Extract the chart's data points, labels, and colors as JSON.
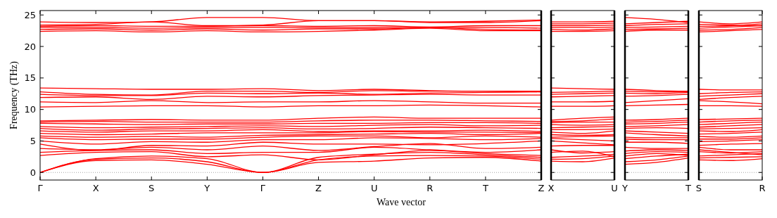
{
  "chart_data": [
    {
      "type": "line",
      "xlabel": "Wave vector",
      "ylabel": "Frequency (THz)",
      "categories": [
        "Γ",
        "X",
        "S",
        "Y",
        "Γ",
        "Z",
        "U",
        "R",
        "T",
        "Z"
      ],
      "ylim": [
        -1.2,
        25.7
      ],
      "yticks": [
        0,
        5,
        10,
        15,
        20,
        25
      ],
      "grid": false,
      "marker": "none",
      "line_style": "solid",
      "ref_lines": [
        {
          "axis": "y",
          "value": 0,
          "color": "#8c8c8c",
          "line_style": "dotted"
        }
      ],
      "series": [
        {
          "color": "#ff0000",
          "values": [
            0,
            1.9,
            2.0,
            1.3,
            0,
            1.6,
            1.8,
            2.3,
            2.4,
            1.8
          ]
        },
        {
          "color": "#ff0000",
          "values": [
            0,
            2.1,
            2.3,
            1.7,
            0,
            2.0,
            2.6,
            2.7,
            2.6,
            2.1
          ]
        },
        {
          "color": "#ff0000",
          "values": [
            0,
            2.2,
            2.6,
            2.2,
            0,
            2.4,
            2.9,
            3.2,
            2.8,
            2.4
          ]
        },
        {
          "color": "#ff0000",
          "values": [
            2.7,
            3.2,
            3.3,
            2.5,
            2.8,
            2.0,
            2.8,
            3.5,
            3.0,
            2.7
          ]
        },
        {
          "color": "#ff0000",
          "values": [
            3.2,
            3.5,
            3.6,
            3.0,
            3.2,
            3.2,
            4.0,
            3.6,
            3.2,
            3.6
          ]
        },
        {
          "color": "#ff0000",
          "values": [
            3.8,
            3.6,
            4.0,
            3.6,
            4.2,
            3.5,
            4.1,
            4.6,
            3.8,
            4.0
          ]
        },
        {
          "color": "#ff0000",
          "values": [
            4.5,
            3.5,
            4.3,
            4.2,
            4.8,
            4.5,
            4.5,
            4.4,
            4.6,
            5.0
          ]
        },
        {
          "color": "#ff0000",
          "values": [
            5.0,
            4.5,
            4.9,
            4.8,
            5.2,
            5.2,
            5.5,
            5.4,
            5.2,
            5.4
          ]
        },
        {
          "color": "#ff0000",
          "values": [
            5.5,
            5.2,
            5.3,
            5.3,
            5.6,
            5.8,
            5.8,
            5.5,
            5.8,
            5.6
          ]
        },
        {
          "color": "#ff0000",
          "values": [
            5.8,
            5.6,
            5.7,
            5.6,
            5.9,
            6.0,
            6.1,
            6.2,
            6.0,
            6.2
          ]
        },
        {
          "color": "#ff0000",
          "values": [
            6.2,
            6.0,
            6.1,
            6.3,
            6.3,
            6.3,
            6.5,
            6.4,
            6.4,
            6.3
          ]
        },
        {
          "color": "#ff0000",
          "values": [
            6.6,
            6.4,
            6.6,
            6.6,
            6.8,
            6.5,
            6.6,
            6.6,
            6.7,
            6.5
          ]
        },
        {
          "color": "#ff0000",
          "values": [
            7.0,
            6.7,
            6.9,
            7.0,
            7.1,
            6.9,
            7.0,
            7.2,
            7.1,
            7.0
          ]
        },
        {
          "color": "#ff0000",
          "values": [
            7.3,
            7.1,
            7.2,
            7.3,
            7.4,
            7.3,
            7.5,
            7.6,
            7.4,
            7.5
          ]
        },
        {
          "color": "#ff0000",
          "values": [
            7.8,
            7.7,
            7.6,
            7.7,
            7.7,
            7.8,
            7.8,
            7.9,
            7.9,
            7.8
          ]
        },
        {
          "color": "#ff0000",
          "values": [
            8.0,
            8.1,
            8.0,
            8.0,
            8.0,
            8.2,
            8.3,
            8.3,
            8.2,
            8.1
          ]
        },
        {
          "color": "#ff0000",
          "values": [
            8.2,
            8.3,
            8.4,
            8.3,
            8.3,
            8.6,
            8.8,
            8.6,
            8.6,
            8.6
          ]
        },
        {
          "color": "#ff0000",
          "values": [
            10.4,
            10.5,
            10.6,
            10.6,
            10.4,
            10.6,
            10.6,
            10.7,
            10.6,
            10.4
          ]
        },
        {
          "color": "#ff0000",
          "values": [
            11.2,
            11.1,
            11.4,
            11.1,
            11.2,
            11.2,
            11.4,
            11.2,
            11.0,
            11.0
          ]
        },
        {
          "color": "#ff0000",
          "values": [
            11.9,
            12.0,
            11.6,
            12.1,
            12.0,
            12.2,
            12.3,
            12.4,
            12.3,
            12.3
          ]
        },
        {
          "color": "#ff0000",
          "values": [
            12.4,
            12.2,
            12.2,
            12.6,
            12.5,
            12.6,
            12.4,
            12.6,
            12.7,
            12.8
          ]
        },
        {
          "color": "#ff0000",
          "values": [
            12.8,
            12.4,
            12.3,
            12.9,
            12.9,
            12.7,
            13.0,
            12.9,
            12.9,
            12.8
          ]
        },
        {
          "color": "#ff0000",
          "values": [
            13.4,
            13.3,
            13.2,
            13.2,
            13.3,
            13.0,
            13.2,
            13.0,
            12.9,
            12.9
          ]
        },
        {
          "color": "#ff0000",
          "values": [
            22.4,
            22.5,
            22.3,
            22.5,
            22.3,
            22.4,
            22.6,
            22.9,
            22.5,
            22.5
          ]
        },
        {
          "color": "#ff0000",
          "values": [
            22.7,
            22.8,
            22.6,
            22.8,
            22.6,
            22.8,
            22.8,
            23.0,
            22.7,
            22.6
          ]
        },
        {
          "color": "#ff0000",
          "values": [
            23.0,
            23.0,
            22.9,
            23.0,
            23.0,
            23.0,
            23.0,
            23.0,
            23.0,
            22.9
          ]
        },
        {
          "color": "#ff0000",
          "values": [
            23.2,
            23.3,
            23.2,
            23.2,
            23.3,
            23.2,
            23.3,
            23.1,
            23.3,
            23.3
          ]
        },
        {
          "color": "#ff0000",
          "values": [
            23.4,
            23.5,
            23.9,
            23.3,
            23.4,
            24.1,
            24.1,
            23.8,
            23.8,
            24.1
          ]
        },
        {
          "color": "#ff0000",
          "values": [
            23.9,
            23.8,
            23.9,
            24.6,
            24.6,
            24.1,
            24.1,
            23.9,
            24.0,
            24.2
          ]
        }
      ]
    },
    {
      "type": "line",
      "categories": [
        "X",
        null,
        "U"
      ],
      "ylim": [
        -1.2,
        25.7
      ],
      "yticks": [
        0,
        5,
        10,
        15,
        20,
        25
      ],
      "tick_labels": "x",
      "grid": false,
      "marker": "none",
      "line_style": "solid",
      "ref_lines": [
        {
          "axis": "y",
          "value": 0,
          "color": "#8c8c8c",
          "line_style": "dotted"
        }
      ],
      "series": [
        {
          "color": "#ff0000",
          "values": [
            1.8,
            1.7,
            2.3
          ]
        },
        {
          "color": "#ff0000",
          "values": [
            2.1,
            2.2,
            2.6
          ]
        },
        {
          "color": "#ff0000",
          "values": [
            2.4,
            2.6,
            2.9
          ]
        },
        {
          "color": "#ff0000",
          "values": [
            3.2,
            3.4,
            2.5
          ]
        },
        {
          "color": "#ff0000",
          "values": [
            3.6,
            3.1,
            3.3
          ]
        },
        {
          "color": "#ff0000",
          "values": [
            4.2,
            4.3,
            4.3
          ]
        },
        {
          "color": "#ff0000",
          "values": [
            5.0,
            4.7,
            4.4
          ]
        },
        {
          "color": "#ff0000",
          "values": [
            5.4,
            5.2,
            5.0
          ]
        },
        {
          "color": "#ff0000",
          "values": [
            5.6,
            5.7,
            5.8
          ]
        },
        {
          "color": "#ff0000",
          "values": [
            6.0,
            5.9,
            6.0
          ]
        },
        {
          "color": "#ff0000",
          "values": [
            6.4,
            6.2,
            6.6
          ]
        },
        {
          "color": "#ff0000",
          "values": [
            6.8,
            6.8,
            6.9
          ]
        },
        {
          "color": "#ff0000",
          "values": [
            7.1,
            7.2,
            7.3
          ]
        },
        {
          "color": "#ff0000",
          "values": [
            7.6,
            7.5,
            7.6
          ]
        },
        {
          "color": "#ff0000",
          "values": [
            7.9,
            8.0,
            8.0
          ]
        },
        {
          "color": "#ff0000",
          "values": [
            8.1,
            8.2,
            8.5
          ]
        },
        {
          "color": "#ff0000",
          "values": [
            8.3,
            8.6,
            8.8
          ]
        },
        {
          "color": "#ff0000",
          "values": [
            10.5,
            10.5,
            10.6
          ]
        },
        {
          "color": "#ff0000",
          "values": [
            11.2,
            11.2,
            11.3
          ]
        },
        {
          "color": "#ff0000",
          "values": [
            12.0,
            12.1,
            12.2
          ]
        },
        {
          "color": "#ff0000",
          "values": [
            12.4,
            12.5,
            12.6
          ]
        },
        {
          "color": "#ff0000",
          "values": [
            12.7,
            12.8,
            12.9
          ]
        },
        {
          "color": "#ff0000",
          "values": [
            13.4,
            13.3,
            13.2
          ]
        },
        {
          "color": "#ff0000",
          "values": [
            22.4,
            22.4,
            22.5
          ]
        },
        {
          "color": "#ff0000",
          "values": [
            22.7,
            22.6,
            22.8
          ]
        },
        {
          "color": "#ff0000",
          "values": [
            23.0,
            23.0,
            23.1
          ]
        },
        {
          "color": "#ff0000",
          "values": [
            23.3,
            23.3,
            23.4
          ]
        },
        {
          "color": "#ff0000",
          "values": [
            23.6,
            23.6,
            23.7
          ]
        },
        {
          "color": "#ff0000",
          "values": [
            23.9,
            23.9,
            24.0
          ]
        }
      ]
    },
    {
      "type": "line",
      "categories": [
        "Y",
        null,
        "T"
      ],
      "ylim": [
        -1.2,
        25.7
      ],
      "yticks": [
        0,
        5,
        10,
        15,
        20,
        25
      ],
      "tick_labels": "x",
      "grid": false,
      "marker": "none",
      "line_style": "solid",
      "ref_lines": [
        {
          "axis": "y",
          "value": 0,
          "color": "#8c8c8c",
          "line_style": "dotted"
        }
      ],
      "series": [
        {
          "color": "#ff0000",
          "values": [
            1.3,
            1.6,
            2.3
          ]
        },
        {
          "color": "#ff0000",
          "values": [
            1.7,
            2.0,
            2.6
          ]
        },
        {
          "color": "#ff0000",
          "values": [
            2.2,
            2.6,
            2.9
          ]
        },
        {
          "color": "#ff0000",
          "values": [
            2.6,
            3.0,
            2.7
          ]
        },
        {
          "color": "#ff0000",
          "values": [
            3.0,
            3.3,
            3.2
          ]
        },
        {
          "color": "#ff0000",
          "values": [
            3.4,
            3.6,
            3.5
          ]
        },
        {
          "color": "#ff0000",
          "values": [
            4.0,
            3.8,
            3.8
          ]
        },
        {
          "color": "#ff0000",
          "values": [
            4.8,
            4.8,
            4.6
          ]
        },
        {
          "color": "#ff0000",
          "values": [
            5.3,
            5.2,
            5.2
          ]
        },
        {
          "color": "#ff0000",
          "values": [
            5.6,
            5.5,
            5.5
          ]
        },
        {
          "color": "#ff0000",
          "values": [
            6.3,
            6.0,
            5.8
          ]
        },
        {
          "color": "#ff0000",
          "values": [
            6.6,
            6.4,
            6.2
          ]
        },
        {
          "color": "#ff0000",
          "values": [
            7.0,
            7.1,
            7.0
          ]
        },
        {
          "color": "#ff0000",
          "values": [
            7.3,
            7.4,
            7.6
          ]
        },
        {
          "color": "#ff0000",
          "values": [
            7.7,
            7.8,
            8.0
          ]
        },
        {
          "color": "#ff0000",
          "values": [
            8.0,
            8.1,
            8.3
          ]
        },
        {
          "color": "#ff0000",
          "values": [
            8.3,
            8.4,
            8.6
          ]
        },
        {
          "color": "#ff0000",
          "values": [
            10.6,
            10.7,
            10.8
          ]
        },
        {
          "color": "#ff0000",
          "values": [
            11.1,
            11.4,
            11.7
          ]
        },
        {
          "color": "#ff0000",
          "values": [
            12.1,
            12.2,
            12.4
          ]
        },
        {
          "color": "#ff0000",
          "values": [
            12.6,
            12.5,
            12.7
          ]
        },
        {
          "color": "#ff0000",
          "values": [
            12.9,
            12.8,
            12.8
          ]
        },
        {
          "color": "#ff0000",
          "values": [
            13.2,
            13.0,
            12.9
          ]
        },
        {
          "color": "#ff0000",
          "values": [
            22.4,
            22.6,
            22.6
          ]
        },
        {
          "color": "#ff0000",
          "values": [
            22.7,
            22.8,
            22.9
          ]
        },
        {
          "color": "#ff0000",
          "values": [
            23.0,
            23.1,
            23.2
          ]
        },
        {
          "color": "#ff0000",
          "values": [
            23.3,
            23.5,
            23.6
          ]
        },
        {
          "color": "#ff0000",
          "values": [
            23.6,
            23.8,
            24.0
          ]
        },
        {
          "color": "#ff0000",
          "values": [
            24.6,
            24.3,
            23.8
          ]
        }
      ]
    },
    {
      "type": "line",
      "categories": [
        "S",
        null,
        "R"
      ],
      "ylim": [
        -1.2,
        25.7
      ],
      "yticks": [
        0,
        5,
        10,
        15,
        20,
        25
      ],
      "tick_labels": "x",
      "grid": false,
      "marker": "none",
      "line_style": "solid",
      "ref_lines": [
        {
          "axis": "y",
          "value": 0,
          "color": "#8c8c8c",
          "line_style": "dotted"
        }
      ],
      "series": [
        {
          "color": "#ff0000",
          "values": [
            2.0,
            1.9,
            2.2
          ]
        },
        {
          "color": "#ff0000",
          "values": [
            2.3,
            2.4,
            2.5
          ]
        },
        {
          "color": "#ff0000",
          "values": [
            2.6,
            2.8,
            3.0
          ]
        },
        {
          "color": "#ff0000",
          "values": [
            3.3,
            3.1,
            3.3
          ]
        },
        {
          "color": "#ff0000",
          "values": [
            3.6,
            3.2,
            2.8
          ]
        },
        {
          "color": "#ff0000",
          "values": [
            4.0,
            3.6,
            3.6
          ]
        },
        {
          "color": "#ff0000",
          "values": [
            4.3,
            4.5,
            4.6
          ]
        },
        {
          "color": "#ff0000",
          "values": [
            4.9,
            5.0,
            5.2
          ]
        },
        {
          "color": "#ff0000",
          "values": [
            5.3,
            5.3,
            5.5
          ]
        },
        {
          "color": "#ff0000",
          "values": [
            5.7,
            5.6,
            5.8
          ]
        },
        {
          "color": "#ff0000",
          "values": [
            6.1,
            6.2,
            6.4
          ]
        },
        {
          "color": "#ff0000",
          "values": [
            6.6,
            6.5,
            6.8
          ]
        },
        {
          "color": "#ff0000",
          "values": [
            6.9,
            7.0,
            7.1
          ]
        },
        {
          "color": "#ff0000",
          "values": [
            7.2,
            7.4,
            7.6
          ]
        },
        {
          "color": "#ff0000",
          "values": [
            7.6,
            7.8,
            8.0
          ]
        },
        {
          "color": "#ff0000",
          "values": [
            8.0,
            8.2,
            8.3
          ]
        },
        {
          "color": "#ff0000",
          "values": [
            8.4,
            8.5,
            8.6
          ]
        },
        {
          "color": "#ff0000",
          "values": [
            10.6,
            10.6,
            10.5
          ]
        },
        {
          "color": "#ff0000",
          "values": [
            11.4,
            11.2,
            10.9
          ]
        },
        {
          "color": "#ff0000",
          "values": [
            11.6,
            11.9,
            12.1
          ]
        },
        {
          "color": "#ff0000",
          "values": [
            12.1,
            12.3,
            12.5
          ]
        },
        {
          "color": "#ff0000",
          "values": [
            12.5,
            12.7,
            12.8
          ]
        },
        {
          "color": "#ff0000",
          "values": [
            13.2,
            13.1,
            13.1
          ]
        },
        {
          "color": "#ff0000",
          "values": [
            22.3,
            22.5,
            22.7
          ]
        },
        {
          "color": "#ff0000",
          "values": [
            22.6,
            22.7,
            23.0
          ]
        },
        {
          "color": "#ff0000",
          "values": [
            22.9,
            23.1,
            23.3
          ]
        },
        {
          "color": "#ff0000",
          "values": [
            23.2,
            23.3,
            23.6
          ]
        },
        {
          "color": "#ff0000",
          "values": [
            23.5,
            23.4,
            23.3
          ]
        },
        {
          "color": "#ff0000",
          "values": [
            23.9,
            23.6,
            23.9
          ]
        }
      ]
    }
  ]
}
